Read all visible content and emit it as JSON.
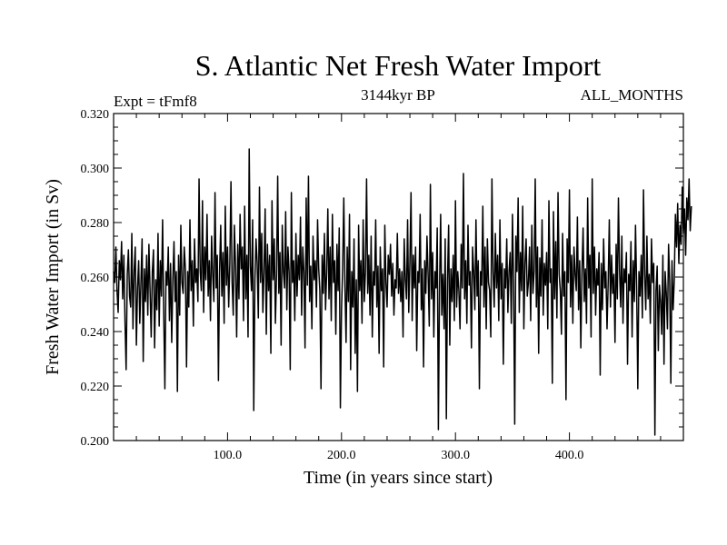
{
  "chart_data": {
    "type": "line",
    "title": "S. Atlantic Net Fresh Water Import",
    "subtitle_left": "Expt = tFmf8",
    "subtitle_center": "3144kyr BP",
    "subtitle_right": "ALL_MONTHS",
    "xlabel": "Time (in years since start)",
    "ylabel": "Fresh Water Import (in Sv)",
    "xlim": [
      0,
      500
    ],
    "ylim": [
      0.2,
      0.32
    ],
    "x_ticks": [
      100,
      200,
      300,
      400
    ],
    "x_tick_labels": [
      "100.0",
      "200.0",
      "300.0",
      "400.0"
    ],
    "y_ticks": [
      0.2,
      0.22,
      0.24,
      0.26,
      0.28,
      0.3,
      0.32
    ],
    "y_tick_labels": [
      "0.200",
      "0.220",
      "0.240",
      "0.260",
      "0.280",
      "0.300",
      "0.320"
    ],
    "grid": false,
    "series": [
      {
        "name": "Fresh Water Import",
        "color": "#000000",
        "x_start": 0,
        "x_step": 1,
        "values": [
          0.262,
          0.258,
          0.271,
          0.255,
          0.247,
          0.266,
          0.259,
          0.273,
          0.252,
          0.268,
          0.244,
          0.226,
          0.261,
          0.27,
          0.253,
          0.249,
          0.276,
          0.241,
          0.262,
          0.271,
          0.235,
          0.256,
          0.266,
          0.243,
          0.258,
          0.274,
          0.229,
          0.263,
          0.251,
          0.268,
          0.246,
          0.272,
          0.255,
          0.238,
          0.262,
          0.27,
          0.234,
          0.259,
          0.248,
          0.276,
          0.242,
          0.266,
          0.253,
          0.281,
          0.247,
          0.219,
          0.262,
          0.257,
          0.271,
          0.244,
          0.265,
          0.236,
          0.259,
          0.273,
          0.251,
          0.262,
          0.218,
          0.268,
          0.246,
          0.279,
          0.258,
          0.254,
          0.271,
          0.263,
          0.227,
          0.262,
          0.249,
          0.281,
          0.255,
          0.266,
          0.242,
          0.274,
          0.258,
          0.263,
          0.251,
          0.296,
          0.262,
          0.255,
          0.288,
          0.247,
          0.271,
          0.259,
          0.283,
          0.253,
          0.266,
          0.244,
          0.275,
          0.261,
          0.251,
          0.291,
          0.256,
          0.268,
          0.222,
          0.262,
          0.279,
          0.253,
          0.269,
          0.243,
          0.286,
          0.257,
          0.271,
          0.249,
          0.265,
          0.295,
          0.258,
          0.246,
          0.279,
          0.264,
          0.238,
          0.272,
          0.252,
          0.283,
          0.263,
          0.271,
          0.244,
          0.286,
          0.252,
          0.268,
          0.238,
          0.307,
          0.264,
          0.255,
          0.281,
          0.211,
          0.259,
          0.274,
          0.265,
          0.245,
          0.293,
          0.258,
          0.276,
          0.247,
          0.262,
          0.285,
          0.239,
          0.272,
          0.255,
          0.268,
          0.232,
          0.288,
          0.259,
          0.274,
          0.243,
          0.261,
          0.297,
          0.254,
          0.269,
          0.235,
          0.279,
          0.262,
          0.256,
          0.284,
          0.248,
          0.271,
          0.262,
          0.226,
          0.291,
          0.258,
          0.266,
          0.244,
          0.276,
          0.253,
          0.268,
          0.259,
          0.282,
          0.246,
          0.271,
          0.262,
          0.234,
          0.289,
          0.257,
          0.297,
          0.251,
          0.264,
          0.241,
          0.275,
          0.259,
          0.266,
          0.249,
          0.281,
          0.263,
          0.255,
          0.219,
          0.268,
          0.254,
          0.276,
          0.248,
          0.262,
          0.285,
          0.252,
          0.271,
          0.244,
          0.283,
          0.258,
          0.266,
          0.239,
          0.272,
          0.255,
          0.278,
          0.212,
          0.248,
          0.263,
          0.289,
          0.257,
          0.236,
          0.271,
          0.251,
          0.283,
          0.226,
          0.262,
          0.249,
          0.274,
          0.232,
          0.259,
          0.218,
          0.279,
          0.255,
          0.266,
          0.243,
          0.281,
          0.251,
          0.262,
          0.296,
          0.254,
          0.268,
          0.246,
          0.275,
          0.238,
          0.262,
          0.257,
          0.281,
          0.249,
          0.264,
          0.232,
          0.271,
          0.255,
          0.263,
          0.227,
          0.279,
          0.258,
          0.249,
          0.268,
          0.261,
          0.272,
          0.253,
          0.265,
          0.246,
          0.259,
          0.256,
          0.276,
          0.254,
          0.263,
          0.251,
          0.262,
          0.238,
          0.274,
          0.259,
          0.252,
          0.281,
          0.247,
          0.265,
          0.291,
          0.244,
          0.268,
          0.256,
          0.271,
          0.233,
          0.262,
          0.258,
          0.283,
          0.248,
          0.263,
          0.227,
          0.266,
          0.254,
          0.275,
          0.261,
          0.242,
          0.294,
          0.252,
          0.269,
          0.238,
          0.262,
          0.256,
          0.278,
          0.204,
          0.255,
          0.283,
          0.246,
          0.261,
          0.241,
          0.274,
          0.208,
          0.259,
          0.279,
          0.235,
          0.263,
          0.251,
          0.268,
          0.244,
          0.288,
          0.249,
          0.262,
          0.255,
          0.241,
          0.272,
          0.256,
          0.298,
          0.252,
          0.266,
          0.243,
          0.279,
          0.257,
          0.262,
          0.234,
          0.271,
          0.262,
          0.248,
          0.281,
          0.253,
          0.266,
          0.219,
          0.262,
          0.257,
          0.286,
          0.249,
          0.271,
          0.241,
          0.274,
          0.258,
          0.255,
          0.238,
          0.296,
          0.262,
          0.249,
          0.276,
          0.256,
          0.268,
          0.244,
          0.281,
          0.252,
          0.265,
          0.228,
          0.263,
          0.256,
          0.274,
          0.247,
          0.262,
          0.269,
          0.243,
          0.283,
          0.258,
          0.206,
          0.275,
          0.262,
          0.289,
          0.247,
          0.269,
          0.255,
          0.286,
          0.241,
          0.265,
          0.274,
          0.253,
          0.258,
          0.271,
          0.244,
          0.279,
          0.254,
          0.262,
          0.296,
          0.249,
          0.271,
          0.232,
          0.267,
          0.253,
          0.281,
          0.246,
          0.265,
          0.257,
          0.269,
          0.241,
          0.288,
          0.258,
          0.263,
          0.221,
          0.284,
          0.252,
          0.273,
          0.245,
          0.291,
          0.261,
          0.255,
          0.239,
          0.276,
          0.253,
          0.262,
          0.215,
          0.274,
          0.258,
          0.292,
          0.249,
          0.268,
          0.243,
          0.271,
          0.261,
          0.255,
          0.282,
          0.248,
          0.266,
          0.234,
          0.262,
          0.278,
          0.251,
          0.263,
          0.243,
          0.289,
          0.256,
          0.268,
          0.238,
          0.296,
          0.254,
          0.271,
          0.246,
          0.263,
          0.257,
          0.269,
          0.224,
          0.265,
          0.248,
          0.274,
          0.256,
          0.262,
          0.241,
          0.258,
          0.281,
          0.249,
          0.268,
          0.254,
          0.261,
          0.236,
          0.272,
          0.252,
          0.289,
          0.262,
          0.249,
          0.275,
          0.243,
          0.263,
          0.258,
          0.269,
          0.228,
          0.261,
          0.255,
          0.273,
          0.238,
          0.266,
          0.251,
          0.279,
          0.256,
          0.219,
          0.262,
          0.253,
          0.268,
          0.245,
          0.292,
          0.261,
          0.248,
          0.275,
          0.252,
          0.261,
          0.243,
          0.274,
          0.258,
          0.265,
          0.202,
          0.255,
          0.264,
          0.233,
          0.257,
          0.251,
          0.239,
          0.268,
          0.228,
          0.262,
          0.254,
          0.241,
          0.272,
          0.258,
          0.221,
          0.266,
          0.248,
          0.259,
          0.283,
          0.271,
          0.287,
          0.265,
          0.279,
          0.272,
          0.293,
          0.276,
          0.285,
          0.268,
          0.289,
          0.281,
          0.296,
          0.277,
          0.286
        ]
      }
    ]
  }
}
